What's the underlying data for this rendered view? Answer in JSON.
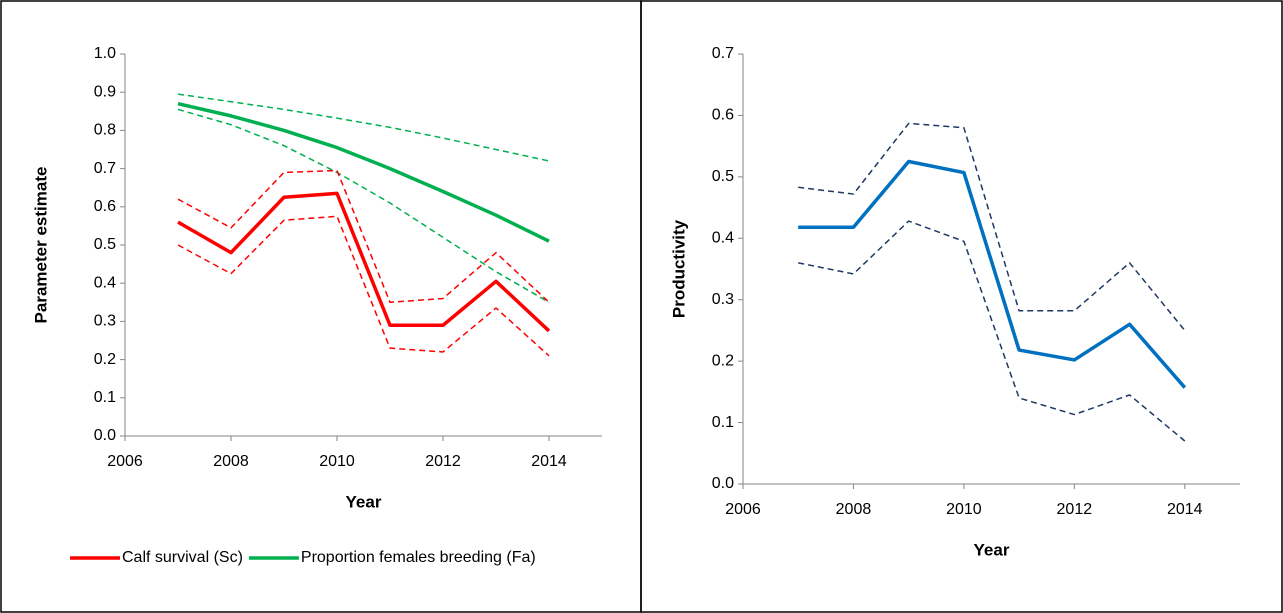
{
  "chart_data": [
    {
      "type": "line",
      "x_label": "Year",
      "y_label": "Parameter estimate",
      "x": [
        2007,
        2008,
        2009,
        2010,
        2011,
        2012,
        2013,
        2014
      ],
      "xlim": [
        2006,
        2015
      ],
      "xticks": [
        2006,
        2008,
        2010,
        2012,
        2014
      ],
      "ylim": [
        0,
        1
      ],
      "yticks": [
        {
          "value": 0,
          "label": "0.0"
        },
        0.1,
        0.2,
        0.3,
        0.4,
        0.5,
        0.6,
        0.7,
        0.8,
        0.9,
        {
          "value": 1,
          "label": "1.0"
        }
      ],
      "grid": false,
      "legend": "bottom",
      "series": [
        {
          "color": "#00b050",
          "dashed": true,
          "values": [
            0.895,
            0.875,
            0.855,
            0.832,
            0.808,
            0.78,
            0.75,
            0.72
          ]
        },
        {
          "color": "#00b050",
          "dashed": true,
          "values": [
            0.855,
            0.815,
            0.76,
            0.69,
            0.61,
            0.52,
            0.43,
            0.35
          ]
        },
        {
          "color": "#ff0000",
          "dashed": true,
          "values": [
            0.62,
            0.545,
            0.69,
            0.695,
            0.35,
            0.36,
            0.48,
            0.35
          ]
        },
        {
          "color": "#ff0000",
          "dashed": true,
          "values": [
            0.5,
            0.425,
            0.565,
            0.575,
            0.23,
            0.22,
            0.335,
            0.21
          ]
        },
        {
          "name": "Calf survival (Sc)",
          "color": "#ff0000",
          "values": [
            0.56,
            0.48,
            0.625,
            0.635,
            0.29,
            0.29,
            0.405,
            0.275
          ]
        },
        {
          "name": "Proportion females breeding (Fa)",
          "color": "#00b050",
          "values": [
            0.87,
            0.838,
            0.8,
            0.755,
            0.7,
            0.64,
            0.578,
            0.51
          ]
        }
      ]
    },
    {
      "type": "line",
      "x_label": "Year",
      "y_label": "Productivity",
      "x": [
        2007,
        2008,
        2009,
        2010,
        2011,
        2012,
        2013,
        2014
      ],
      "xlim": [
        2006,
        2015
      ],
      "xticks": [
        2006,
        2008,
        2010,
        2012,
        2014
      ],
      "ylim": [
        0,
        0.7
      ],
      "yticks": [
        {
          "value": 0,
          "label": "0.0"
        },
        0.1,
        0.2,
        0.3,
        0.4,
        0.5,
        0.6,
        0.7
      ],
      "grid": false,
      "series": [
        {
          "color": "#1f3864",
          "dashed": true,
          "values": [
            0.483,
            0.472,
            0.587,
            0.58,
            0.282,
            0.282,
            0.36,
            0.25
          ]
        },
        {
          "color": "#1f3864",
          "dashed": true,
          "values": [
            0.36,
            0.342,
            0.428,
            0.395,
            0.14,
            0.113,
            0.145,
            0.07
          ]
        },
        {
          "color": "#0070c0",
          "values": [
            0.418,
            0.418,
            0.525,
            0.507,
            0.218,
            0.202,
            0.26,
            0.157
          ]
        }
      ]
    }
  ]
}
